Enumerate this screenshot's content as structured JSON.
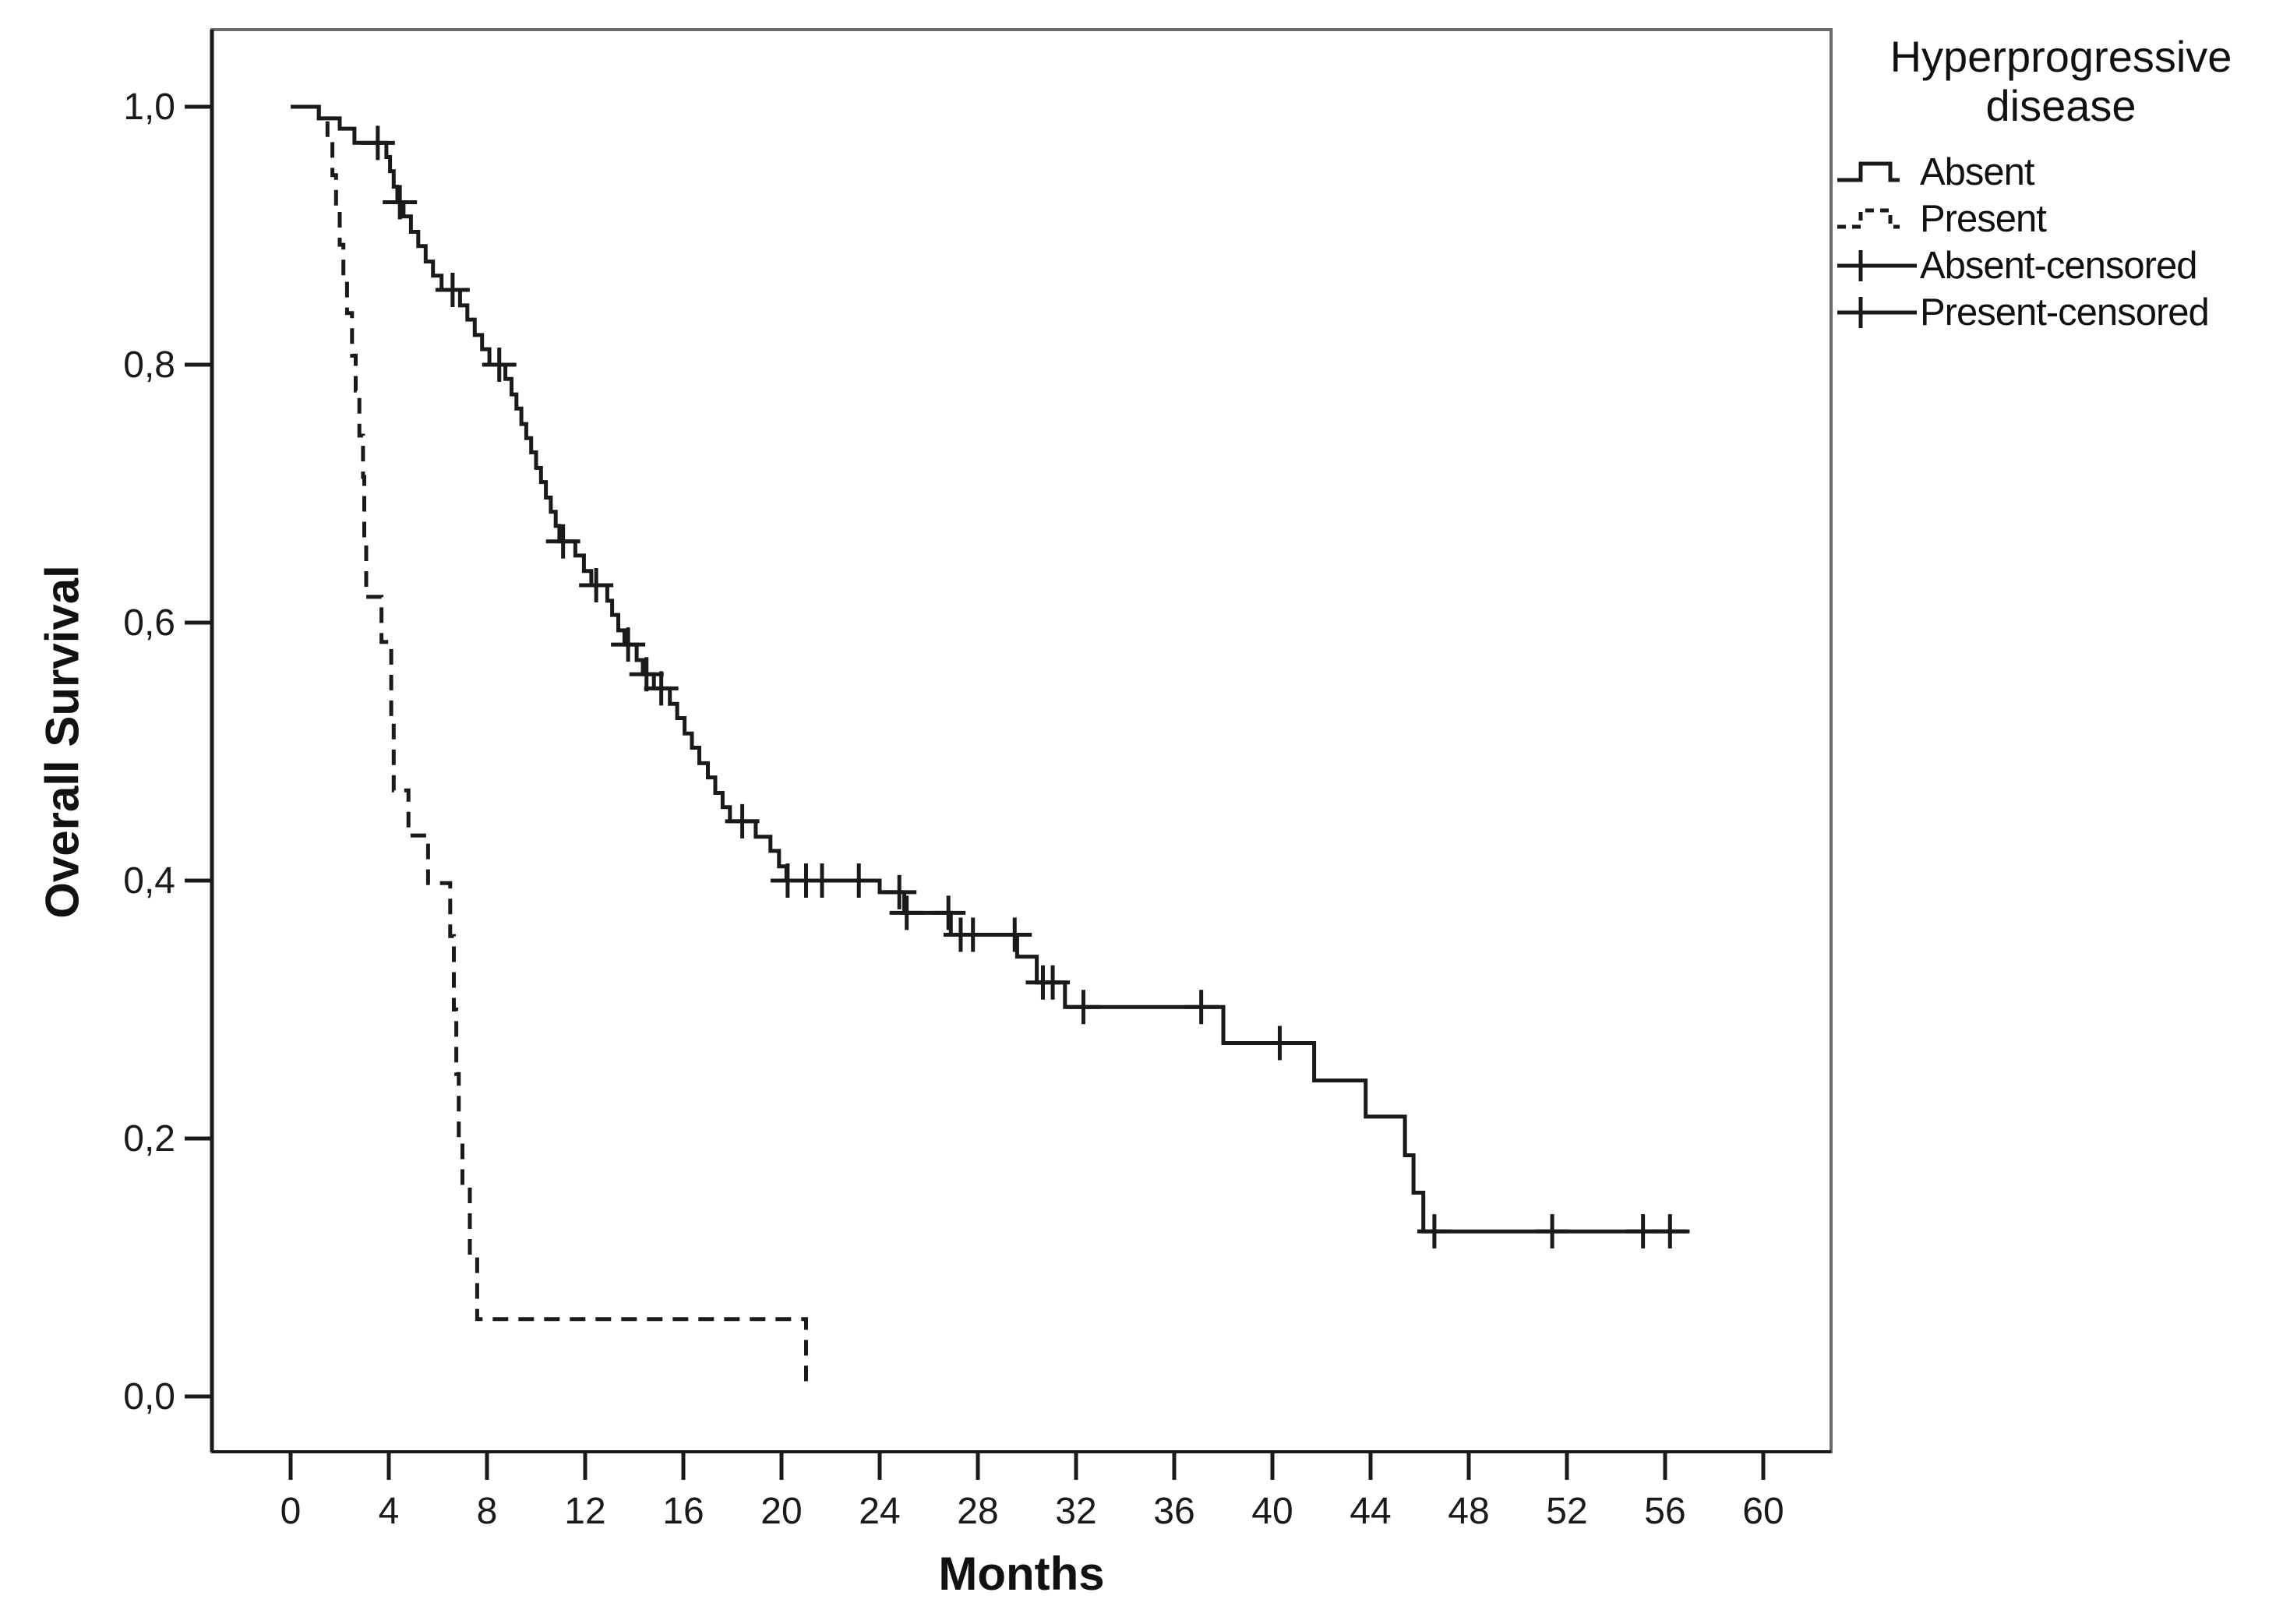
{
  "chart_data": {
    "type": "line",
    "subtype": "kaplan-meier-step-plot",
    "title": "",
    "xlabel": "Months",
    "ylabel": "Overall Survival",
    "background_color": "#ffffff",
    "curve_color": "#1a1a1a",
    "frame_color": "#6b6b6b",
    "grid": false,
    "decimal_separator": "comma",
    "x_axis": {
      "ticks": [
        0,
        4,
        8,
        12,
        16,
        20,
        24,
        28,
        32,
        36,
        40,
        44,
        48,
        52,
        56,
        60
      ],
      "range_months": [
        -3.2,
        62.8
      ]
    },
    "y_axis": {
      "ticks": [
        {
          "v": 1.0,
          "label": "1,0"
        },
        {
          "v": 0.8,
          "label": "0,8"
        },
        {
          "v": 0.6,
          "label": "0,6"
        },
        {
          "v": 0.4,
          "label": "0,4"
        },
        {
          "v": 0.2,
          "label": "0,2"
        },
        {
          "v": 0.0,
          "label": "0,0"
        }
      ],
      "range": [
        -0.04,
        1.06
      ]
    },
    "legend": {
      "title": "Hyperprogressive disease",
      "position": "top-right-outside",
      "items": [
        {
          "label": "Absent",
          "glyph": "solid-step"
        },
        {
          "label": "Present",
          "glyph": "dashed-step"
        },
        {
          "label": "Absent-censored",
          "glyph": "censor-cross"
        },
        {
          "label": "Present-censored",
          "glyph": "censor-cross"
        }
      ]
    },
    "series": [
      {
        "name": "Absent",
        "style": "solid",
        "step": "step-after",
        "points": [
          [
            0,
            1.0
          ],
          [
            1.15,
            0.991
          ],
          [
            2.0,
            0.983
          ],
          [
            2.6,
            0.972
          ],
          [
            3.9,
            0.961
          ],
          [
            4.05,
            0.95
          ],
          [
            4.2,
            0.938
          ],
          [
            4.35,
            0.926
          ],
          [
            4.6,
            0.915
          ],
          [
            4.9,
            0.903
          ],
          [
            5.2,
            0.892
          ],
          [
            5.5,
            0.88
          ],
          [
            5.8,
            0.869
          ],
          [
            6.15,
            0.858
          ],
          [
            6.9,
            0.846
          ],
          [
            7.2,
            0.835
          ],
          [
            7.5,
            0.823
          ],
          [
            7.8,
            0.812
          ],
          [
            8.1,
            0.8
          ],
          [
            8.75,
            0.789
          ],
          [
            9.0,
            0.777
          ],
          [
            9.2,
            0.766
          ],
          [
            9.4,
            0.754
          ],
          [
            9.6,
            0.743
          ],
          [
            9.8,
            0.732
          ],
          [
            10.0,
            0.72
          ],
          [
            10.2,
            0.709
          ],
          [
            10.4,
            0.697
          ],
          [
            10.6,
            0.686
          ],
          [
            10.8,
            0.675
          ],
          [
            10.95,
            0.663
          ],
          [
            11.6,
            0.652
          ],
          [
            11.95,
            0.64
          ],
          [
            12.25,
            0.629
          ],
          [
            12.9,
            0.617
          ],
          [
            13.1,
            0.606
          ],
          [
            13.35,
            0.594
          ],
          [
            13.6,
            0.583
          ],
          [
            14.1,
            0.571
          ],
          [
            14.35,
            0.56
          ],
          [
            14.8,
            0.549
          ],
          [
            15.45,
            0.537
          ],
          [
            15.75,
            0.526
          ],
          [
            16.05,
            0.514
          ],
          [
            16.35,
            0.503
          ],
          [
            16.65,
            0.491
          ],
          [
            17.0,
            0.48
          ],
          [
            17.3,
            0.468
          ],
          [
            17.6,
            0.457
          ],
          [
            17.9,
            0.446
          ],
          [
            18.95,
            0.434
          ],
          [
            19.55,
            0.423
          ],
          [
            19.9,
            0.411
          ],
          [
            20.2,
            0.4
          ],
          [
            24.0,
            0.391
          ],
          [
            25.0,
            0.375
          ],
          [
            26.9,
            0.358
          ],
          [
            29.6,
            0.341
          ],
          [
            30.4,
            0.321
          ],
          [
            31.55,
            0.302
          ],
          [
            38.0,
            0.274
          ],
          [
            41.7,
            0.245
          ],
          [
            43.8,
            0.217
          ],
          [
            45.4,
            0.187
          ],
          [
            45.75,
            0.158
          ],
          [
            46.15,
            0.128
          ],
          [
            57.0,
            0.128
          ]
        ],
        "censored": [
          [
            3.55,
            0.972
          ],
          [
            4.45,
            0.926
          ],
          [
            6.6,
            0.858
          ],
          [
            8.5,
            0.8
          ],
          [
            11.1,
            0.663
          ],
          [
            12.45,
            0.629
          ],
          [
            13.75,
            0.583
          ],
          [
            14.5,
            0.56
          ],
          [
            15.1,
            0.549
          ],
          [
            18.4,
            0.446
          ],
          [
            20.25,
            0.4
          ],
          [
            21.0,
            0.4
          ],
          [
            21.65,
            0.4
          ],
          [
            23.15,
            0.4
          ],
          [
            24.8,
            0.391
          ],
          [
            25.1,
            0.375
          ],
          [
            26.8,
            0.375
          ],
          [
            27.3,
            0.358
          ],
          [
            27.8,
            0.358
          ],
          [
            29.5,
            0.358
          ],
          [
            30.65,
            0.321
          ],
          [
            31.05,
            0.321
          ],
          [
            32.3,
            0.302
          ],
          [
            37.1,
            0.302
          ],
          [
            40.3,
            0.274
          ],
          [
            46.6,
            0.128
          ],
          [
            51.4,
            0.128
          ],
          [
            55.1,
            0.128
          ],
          [
            56.2,
            0.128
          ]
        ]
      },
      {
        "name": "Present",
        "style": "dashed",
        "step": "step-after",
        "points": [
          [
            0,
            1.0
          ],
          [
            1.15,
            0.991
          ],
          [
            1.5,
            0.973
          ],
          [
            1.7,
            0.947
          ],
          [
            1.85,
            0.92
          ],
          [
            2.0,
            0.893
          ],
          [
            2.15,
            0.867
          ],
          [
            2.3,
            0.84
          ],
          [
            2.5,
            0.807
          ],
          [
            2.65,
            0.78
          ],
          [
            2.8,
            0.745
          ],
          [
            2.95,
            0.713
          ],
          [
            3.0,
            0.66
          ],
          [
            3.08,
            0.62
          ],
          [
            3.7,
            0.585
          ],
          [
            4.1,
            0.525
          ],
          [
            4.2,
            0.47
          ],
          [
            4.8,
            0.435
          ],
          [
            5.6,
            0.398
          ],
          [
            6.5,
            0.357
          ],
          [
            6.65,
            0.3
          ],
          [
            6.75,
            0.25
          ],
          [
            6.85,
            0.2
          ],
          [
            7.0,
            0.164
          ],
          [
            7.3,
            0.109
          ],
          [
            7.6,
            0.06
          ],
          [
            20.8,
            0.06
          ],
          [
            21.0,
            0.005
          ]
        ],
        "censored": []
      }
    ]
  }
}
